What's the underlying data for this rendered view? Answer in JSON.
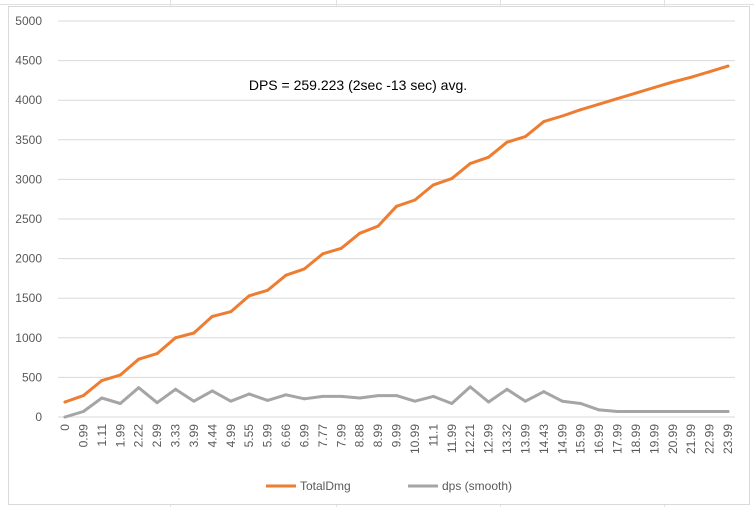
{
  "colors": {
    "total": "#ed7d31",
    "dps": "#a5a5a5",
    "gridline": "#d9d9d9",
    "axis_text": "#595959"
  },
  "chart_data": {
    "type": "line",
    "title": "",
    "xlabel": "",
    "ylabel": "",
    "ylim": [
      0,
      5000
    ],
    "y_ticks": [
      0,
      500,
      1000,
      1500,
      2000,
      2500,
      3000,
      3500,
      4000,
      4500,
      5000
    ],
    "grid": true,
    "legend": "bottom",
    "annotation": "DPS = 259.223 (2sec -13 sec) avg.",
    "categories": [
      "0",
      "0.99",
      "1.11",
      "1.99",
      "2.22",
      "2.99",
      "3.33",
      "3.99",
      "4.44",
      "4.99",
      "5.55",
      "5.99",
      "6.66",
      "6.99",
      "7.77",
      "7.99",
      "8.88",
      "8.99",
      "9.99",
      "10.99",
      "11.1",
      "11.99",
      "12.21",
      "12.99",
      "13.32",
      "13.99",
      "14.43",
      "14.99",
      "15.99",
      "16.99",
      "17.99",
      "18.99",
      "19.99",
      "20.99",
      "21.99",
      "22.99",
      "23.99"
    ],
    "series": [
      {
        "name": "TotalDmg",
        "color": "#ed7d31",
        "values": [
          190,
          270,
          460,
          530,
          730,
          800,
          1000,
          1060,
          1270,
          1330,
          1530,
          1600,
          1790,
          1870,
          2060,
          2130,
          2320,
          2410,
          2660,
          2740,
          2930,
          3010,
          3200,
          3280,
          3470,
          3540,
          3730,
          3800,
          3880,
          3950,
          4020,
          4090,
          4160,
          4230,
          4290,
          4360,
          4430
        ]
      },
      {
        "name": "dps (smooth)",
        "color": "#a5a5a5",
        "values": [
          0,
          70,
          240,
          170,
          370,
          180,
          350,
          200,
          330,
          200,
          290,
          210,
          280,
          230,
          260,
          260,
          240,
          270,
          270,
          200,
          260,
          170,
          380,
          190,
          350,
          200,
          320,
          200,
          170,
          90,
          70,
          70,
          70,
          70,
          70,
          70,
          70
        ]
      }
    ]
  }
}
